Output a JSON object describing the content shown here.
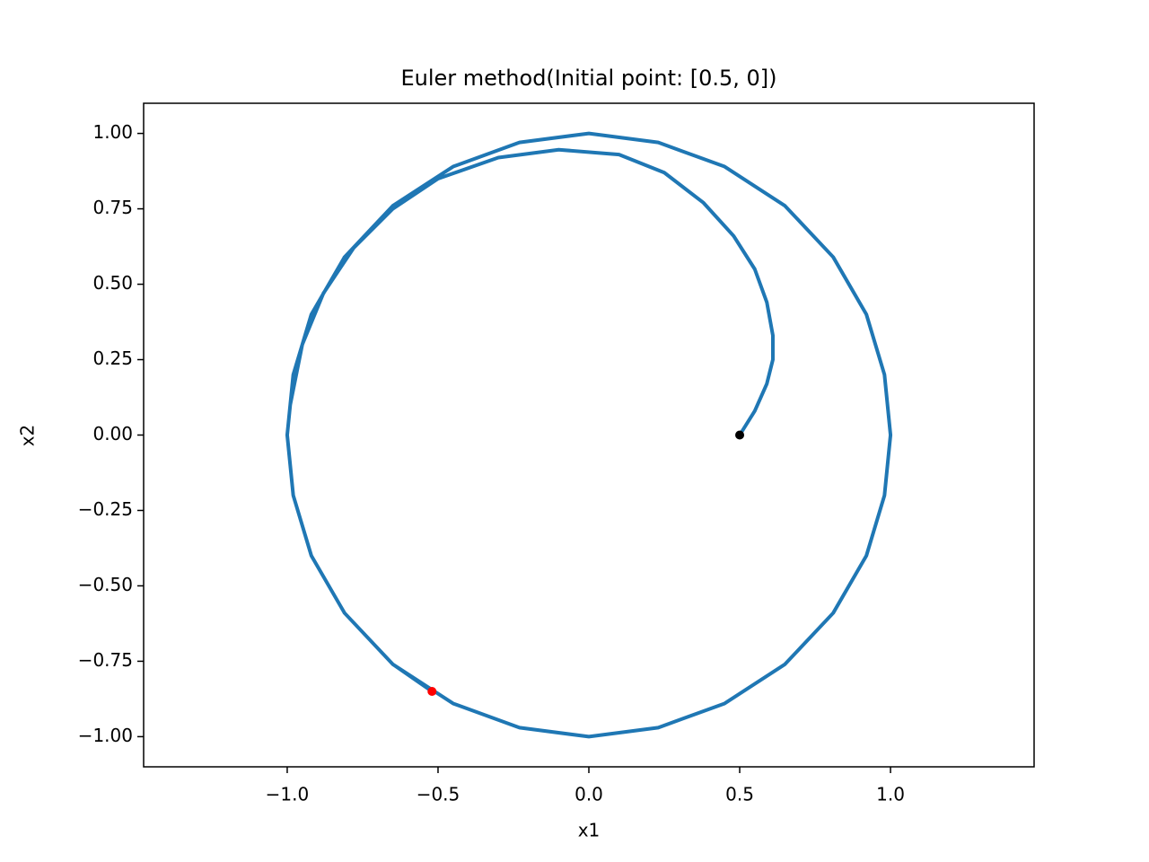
{
  "chart_data": {
    "type": "line",
    "title": "Euler method(Initial point: [0.5, 0])",
    "x_label": "x1",
    "y_label": "x2",
    "xlim": [
      -1.476,
      1.476
    ],
    "ylim": [
      -1.1,
      1.1
    ],
    "xticks": [
      {
        "value": -1.0,
        "label": "−1.0"
      },
      {
        "value": -0.5,
        "label": "−0.5"
      },
      {
        "value": 0,
        "label": "0.0"
      },
      0.5,
      {
        "value": 1.0,
        "label": "1.0"
      }
    ],
    "yticks": [
      {
        "value": -1.0,
        "label": "−1.00"
      },
      {
        "value": -0.75,
        "label": "−0.75"
      },
      {
        "value": -0.5,
        "label": "−0.50"
      },
      {
        "value": -0.25,
        "label": "−0.25"
      },
      {
        "value": 0,
        "label": "0.00"
      },
      {
        "value": 0.25,
        "label": "0.25"
      },
      {
        "value": 0.5,
        "label": "0.50"
      },
      {
        "value": 0.75,
        "label": "0.75"
      },
      {
        "value": 1.0,
        "label": "1.00"
      }
    ],
    "series": [
      {
        "color": "#1f77b4",
        "x": [
          0.5,
          0.55,
          0.59,
          0.61,
          0.61,
          0.59,
          0.55,
          0.48,
          0.38,
          0.25,
          0.1,
          -0.1,
          -0.3,
          -0.5,
          -0.65,
          -0.78,
          -0.88,
          -0.95,
          -0.99,
          -1.0,
          -0.98,
          -0.92,
          -0.81,
          -0.65,
          -0.45,
          -0.23,
          0,
          0.23,
          0.45,
          0.65,
          0.81,
          0.92,
          0.98,
          1.0,
          0.98,
          0.92,
          0.81,
          0.65,
          0.45,
          0.23,
          0,
          -0.23,
          -0.45,
          -0.65,
          -0.81,
          -0.92,
          -0.98,
          -1.0,
          -0.98,
          -0.92,
          -0.81,
          -0.65,
          -0.52
        ],
        "y": [
          0,
          0.08,
          0.17,
          0.25,
          0.33,
          0.44,
          0.55,
          0.66,
          0.77,
          0.87,
          0.93,
          0.946,
          0.92,
          0.85,
          0.75,
          0.62,
          0.47,
          0.3,
          0.1,
          0,
          -0.2,
          -0.4,
          -0.59,
          -0.76,
          -0.89,
          -0.97,
          -1,
          -0.97,
          -0.89,
          -0.76,
          -0.59,
          -0.4,
          -0.2,
          0,
          0.2,
          0.4,
          0.59,
          0.76,
          0.89,
          0.97,
          1,
          0.97,
          0.89,
          0.76,
          0.59,
          0.4,
          0.2,
          0,
          -0.2,
          -0.4,
          -0.59,
          -0.76,
          -0.85
        ]
      }
    ],
    "points": [
      {
        "x": 0.5,
        "y": 0,
        "color": "#000000"
      },
      {
        "x": -0.52,
        "y": -0.85,
        "color": "#ff0000"
      }
    ]
  }
}
